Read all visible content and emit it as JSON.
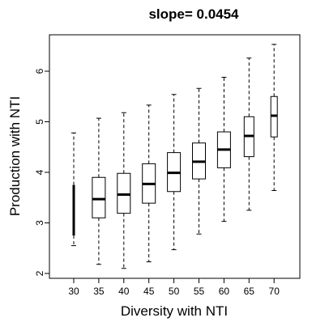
{
  "chart_data": {
    "type": "boxplot",
    "title": "slope= 0.0454",
    "xlabel": "Diversity with NTI",
    "ylabel": "Production with NTI",
    "ylim": [
      1.9,
      6.7
    ],
    "yticks": [
      "2",
      "3",
      "4",
      "5",
      "6"
    ],
    "categories": [
      "30",
      "35",
      "40",
      "45",
      "50",
      "55",
      "60",
      "65",
      "70"
    ],
    "boxes": [
      {
        "whisker_low": 2.55,
        "q1": 2.75,
        "median": 3.2,
        "q3": 3.75,
        "whisker_high": 4.78
      },
      {
        "whisker_low": 2.18,
        "q1": 3.1,
        "median": 3.47,
        "q3": 3.9,
        "whisker_high": 5.07
      },
      {
        "whisker_low": 2.1,
        "q1": 3.19,
        "median": 3.56,
        "q3": 3.98,
        "whisker_high": 5.18
      },
      {
        "whisker_low": 2.23,
        "q1": 3.39,
        "median": 3.77,
        "q3": 4.17,
        "whisker_high": 5.33
      },
      {
        "whisker_low": 2.47,
        "q1": 3.62,
        "median": 3.99,
        "q3": 4.39,
        "whisker_high": 5.54
      },
      {
        "whisker_low": 2.78,
        "q1": 3.87,
        "median": 4.21,
        "q3": 4.58,
        "whisker_high": 5.66
      },
      {
        "whisker_low": 3.03,
        "q1": 4.09,
        "median": 4.45,
        "q3": 4.8,
        "whisker_high": 5.88
      },
      {
        "whisker_low": 3.25,
        "q1": 4.31,
        "median": 4.72,
        "q3": 5.1,
        "whisker_high": 6.26
      },
      {
        "whisker_low": 3.64,
        "q1": 4.7,
        "median": 5.12,
        "q3": 5.5,
        "whisker_high": 6.53
      }
    ],
    "grid": false,
    "legend": "none"
  }
}
